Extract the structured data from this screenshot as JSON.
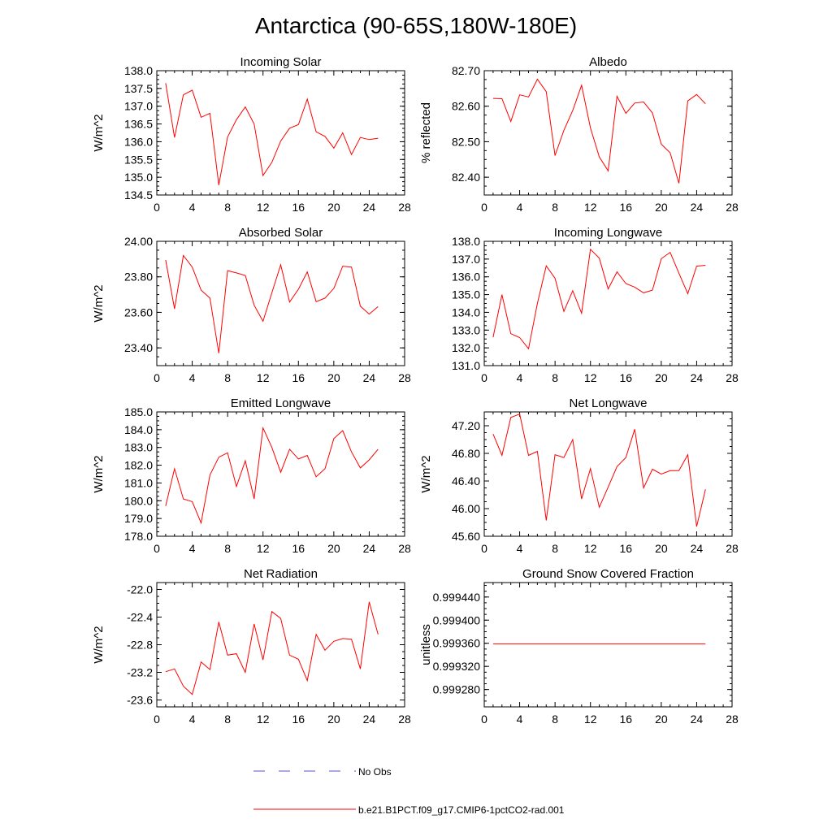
{
  "figure_title": "Antarctica (90-65S,180W-180E)",
  "colors": {
    "series": "#ff0000",
    "no_obs": "#5555cc",
    "axes": "#000000"
  },
  "legend": {
    "entries": [
      {
        "label": "No Obs",
        "style": "dashed",
        "color": "#5555cc"
      },
      {
        "label": "b.e21.B1PCT.f09_g17.CMIP6-1pctCO2-rad.001",
        "style": "solid",
        "color": "#ff0000"
      }
    ]
  },
  "chart_data": [
    {
      "type": "line",
      "title": "Incoming Solar",
      "ylabel": "W/m^2",
      "xlim": [
        0,
        28
      ],
      "xticks": [
        0,
        4,
        8,
        12,
        16,
        20,
        24,
        28
      ],
      "ylim": [
        134.5,
        138.0
      ],
      "yticks": [
        134.5,
        135.0,
        135.5,
        136.0,
        136.5,
        137.0,
        137.5,
        138.0
      ],
      "ytick_labels": [
        "134.5",
        "135.0",
        "135.5",
        "136.0",
        "136.5",
        "137.0",
        "137.5",
        "138.0"
      ],
      "x": [
        1,
        2,
        3,
        4,
        5,
        6,
        7,
        8,
        9,
        10,
        11,
        12,
        13,
        14,
        15,
        16,
        17,
        18,
        19,
        20,
        21,
        22,
        23,
        24,
        25
      ],
      "series": [
        {
          "name": "b.e21.B1PCT.f09_g17.CMIP6-1pctCO2-rad.001",
          "values": [
            137.65,
            136.12,
            137.32,
            137.45,
            136.69,
            136.8,
            134.78,
            136.13,
            136.62,
            136.98,
            136.5,
            135.05,
            135.42,
            136.02,
            136.38,
            136.48,
            137.2,
            136.28,
            136.15,
            135.82,
            136.25,
            135.64,
            136.12,
            136.06,
            136.1
          ]
        }
      ]
    },
    {
      "type": "line",
      "title": "Albedo",
      "ylabel": "% reflected",
      "xlim": [
        0,
        28
      ],
      "xticks": [
        0,
        4,
        8,
        12,
        16,
        20,
        24,
        28
      ],
      "ylim": [
        82.35,
        82.7
      ],
      "yticks": [
        82.4,
        82.5,
        82.6,
        82.7
      ],
      "ytick_labels": [
        "82.40",
        "82.50",
        "82.60",
        "82.70"
      ],
      "x": [
        1,
        2,
        3,
        4,
        5,
        6,
        7,
        8,
        9,
        10,
        11,
        12,
        13,
        14,
        15,
        16,
        17,
        18,
        19,
        20,
        21,
        22,
        23,
        24,
        25
      ],
      "series": [
        {
          "name": "b.e21.B1PCT.f09_g17.CMIP6-1pctCO2-rad.001",
          "values": [
            82.622,
            82.621,
            82.557,
            82.632,
            82.626,
            82.676,
            82.641,
            82.461,
            82.532,
            82.588,
            82.659,
            82.539,
            82.457,
            82.418,
            82.628,
            82.58,
            82.609,
            82.612,
            82.581,
            82.493,
            82.469,
            82.383,
            82.615,
            82.633,
            82.607
          ]
        }
      ]
    },
    {
      "type": "line",
      "title": "Absorbed Solar",
      "ylabel": "W/m^2",
      "xlim": [
        0,
        28
      ],
      "xticks": [
        0,
        4,
        8,
        12,
        16,
        20,
        24,
        28
      ],
      "ylim": [
        23.3,
        24.0
      ],
      "yticks": [
        23.4,
        23.6,
        23.8,
        24.0
      ],
      "ytick_labels": [
        "23.40",
        "23.60",
        "23.80",
        "24.00"
      ],
      "x": [
        1,
        2,
        3,
        4,
        5,
        6,
        7,
        8,
        9,
        10,
        11,
        12,
        13,
        14,
        15,
        16,
        17,
        18,
        19,
        20,
        21,
        22,
        23,
        24,
        25
      ],
      "series": [
        {
          "name": "b.e21.B1PCT.f09_g17.CMIP6-1pctCO2-rad.001",
          "values": [
            23.895,
            23.62,
            23.92,
            23.855,
            23.725,
            23.68,
            23.37,
            23.835,
            23.822,
            23.808,
            23.64,
            23.55,
            23.71,
            23.868,
            23.658,
            23.73,
            23.828,
            23.66,
            23.68,
            23.735,
            23.86,
            23.855,
            23.635,
            23.59,
            23.632
          ]
        }
      ]
    },
    {
      "type": "line",
      "title": "Incoming Longwave",
      "ylabel": "",
      "xlim": [
        0,
        28
      ],
      "xticks": [
        0,
        4,
        8,
        12,
        16,
        20,
        24,
        28
      ],
      "ylim": [
        131.0,
        138.0
      ],
      "yticks": [
        131.0,
        132.0,
        133.0,
        134.0,
        135.0,
        136.0,
        137.0,
        138.0
      ],
      "ytick_labels": [
        "131.0",
        "132.0",
        "133.0",
        "134.0",
        "135.0",
        "136.0",
        "137.0",
        "138.0"
      ],
      "x": [
        1,
        2,
        3,
        4,
        5,
        6,
        7,
        8,
        9,
        10,
        11,
        12,
        13,
        14,
        15,
        16,
        17,
        18,
        19,
        20,
        21,
        22,
        23,
        24,
        25
      ],
      "series": [
        {
          "name": "b.e21.B1PCT.f09_g17.CMIP6-1pctCO2-rad.001",
          "values": [
            132.6,
            135.0,
            132.8,
            132.58,
            131.95,
            134.5,
            136.62,
            135.92,
            134.05,
            135.22,
            133.95,
            137.55,
            137.05,
            135.32,
            136.28,
            135.62,
            135.42,
            135.1,
            135.25,
            137.02,
            137.38,
            136.2,
            135.05,
            136.6,
            136.65
          ]
        }
      ]
    },
    {
      "type": "line",
      "title": "Emitted Longwave",
      "ylabel": "W/m^2",
      "xlim": [
        0,
        28
      ],
      "xticks": [
        0,
        4,
        8,
        12,
        16,
        20,
        24,
        28
      ],
      "ylim": [
        178.0,
        185.0
      ],
      "yticks": [
        178.0,
        179.0,
        180.0,
        181.0,
        182.0,
        183.0,
        184.0,
        185.0
      ],
      "ytick_labels": [
        "178.0",
        "179.0",
        "180.0",
        "181.0",
        "182.0",
        "183.0",
        "184.0",
        "185.0"
      ],
      "x": [
        1,
        2,
        3,
        4,
        5,
        6,
        7,
        8,
        9,
        10,
        11,
        12,
        13,
        14,
        15,
        16,
        17,
        18,
        19,
        20,
        21,
        22,
        23,
        24,
        25
      ],
      "series": [
        {
          "name": "b.e21.B1PCT.f09_g17.CMIP6-1pctCO2-rad.001",
          "values": [
            179.7,
            181.8,
            180.1,
            179.95,
            178.75,
            181.45,
            182.45,
            182.7,
            180.8,
            182.25,
            180.1,
            184.1,
            183.0,
            181.6,
            182.9,
            182.35,
            182.55,
            181.35,
            181.8,
            183.5,
            183.95,
            182.75,
            181.85,
            182.3,
            182.9
          ]
        }
      ]
    },
    {
      "type": "line",
      "title": "Net Longwave",
      "ylabel": "W/m^2",
      "xlim": [
        0,
        28
      ],
      "xticks": [
        0,
        4,
        8,
        12,
        16,
        20,
        24,
        28
      ],
      "ylim": [
        45.6,
        47.4
      ],
      "yticks": [
        45.6,
        46.0,
        46.4,
        46.8,
        47.2
      ],
      "ytick_labels": [
        "45.60",
        "46.00",
        "46.40",
        "46.80",
        "47.20"
      ],
      "x": [
        1,
        2,
        3,
        4,
        5,
        6,
        7,
        8,
        9,
        10,
        11,
        12,
        13,
        14,
        15,
        16,
        17,
        18,
        19,
        20,
        21,
        22,
        23,
        24,
        25
      ],
      "series": [
        {
          "name": "b.e21.B1PCT.f09_g17.CMIP6-1pctCO2-rad.001",
          "values": [
            47.08,
            46.77,
            47.32,
            47.37,
            46.77,
            46.83,
            45.83,
            46.78,
            46.74,
            47.0,
            46.14,
            46.58,
            46.02,
            46.31,
            46.61,
            46.74,
            47.15,
            46.3,
            46.57,
            46.5,
            46.55,
            46.55,
            46.78,
            45.74,
            46.28
          ]
        }
      ]
    },
    {
      "type": "line",
      "title": "Net Radiation",
      "ylabel": "W/m^2",
      "xlim": [
        0,
        28
      ],
      "xticks": [
        0,
        4,
        8,
        12,
        16,
        20,
        24,
        28
      ],
      "ylim": [
        -23.7,
        -21.9
      ],
      "yticks": [
        -23.6,
        -23.2,
        -22.8,
        -22.4,
        -22.0
      ],
      "ytick_labels": [
        "-23.6",
        "-23.2",
        "-22.8",
        "-22.4",
        "-22.0"
      ],
      "x": [
        1,
        2,
        3,
        4,
        5,
        6,
        7,
        8,
        9,
        10,
        11,
        12,
        13,
        14,
        15,
        16,
        17,
        18,
        19,
        20,
        21,
        22,
        23,
        24,
        25
      ],
      "series": [
        {
          "name": "b.e21.B1PCT.f09_g17.CMIP6-1pctCO2-rad.001",
          "values": [
            -23.19,
            -23.15,
            -23.4,
            -23.52,
            -23.05,
            -23.16,
            -22.47,
            -22.95,
            -22.93,
            -23.2,
            -22.5,
            -23.02,
            -22.32,
            -22.42,
            -22.95,
            -23.01,
            -23.32,
            -22.65,
            -22.88,
            -22.75,
            -22.71,
            -22.72,
            -23.15,
            -22.18,
            -22.65
          ]
        }
      ]
    },
    {
      "type": "line",
      "title": "Ground Snow Covered Fraction",
      "ylabel": "unitless",
      "xlim": [
        0,
        28
      ],
      "xticks": [
        0,
        4,
        8,
        12,
        16,
        20,
        24,
        28
      ],
      "ylim": [
        0.99925,
        0.999465
      ],
      "yticks": [
        0.99928,
        0.99932,
        0.99936,
        0.9994,
        0.99944
      ],
      "ytick_labels": [
        "0.999280",
        "0.999320",
        "0.999360",
        "0.999400",
        "0.999440"
      ],
      "x": [
        1,
        2,
        3,
        4,
        5,
        6,
        7,
        8,
        9,
        10,
        11,
        12,
        13,
        14,
        15,
        16,
        17,
        18,
        19,
        20,
        21,
        22,
        23,
        24,
        25
      ],
      "series": [
        {
          "name": "b.e21.B1PCT.f09_g17.CMIP6-1pctCO2-rad.001",
          "values": [
            0.999359,
            0.999359,
            0.999359,
            0.999359,
            0.999359,
            0.999359,
            0.999359,
            0.999359,
            0.999359,
            0.999359,
            0.999359,
            0.999359,
            0.999359,
            0.999359,
            0.999359,
            0.999359,
            0.999359,
            0.999359,
            0.999359,
            0.999359,
            0.999359,
            0.999359,
            0.999359,
            0.999359,
            0.999359
          ]
        }
      ]
    }
  ]
}
